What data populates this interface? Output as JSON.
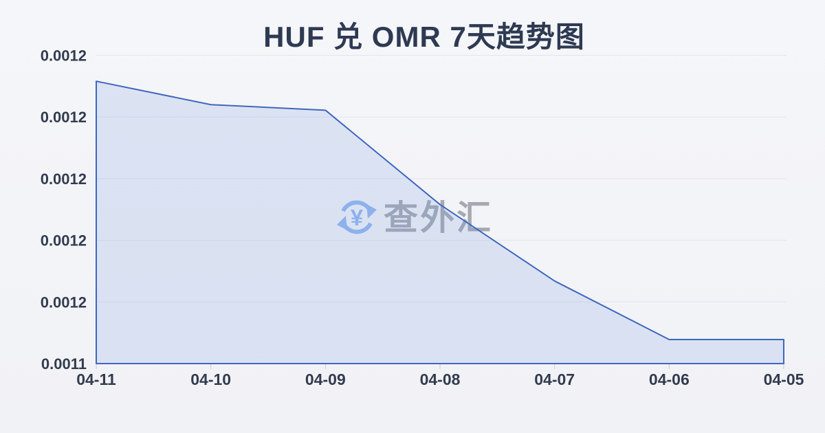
{
  "chart_data": {
    "type": "area",
    "title": "HUF 兑 OMR 7天趋势图",
    "categories": [
      "04-11",
      "04-10",
      "04-09",
      "04-08",
      "04-07",
      "04-06",
      "04-05"
    ],
    "series": [
      {
        "name": "HUF 兑 OMR",
        "values": [
          0.0011908,
          0.001187,
          0.0011861,
          0.0011708,
          0.0011584,
          0.0011489,
          0.0011489
        ]
      }
    ],
    "xlabel": "",
    "ylabel": "",
    "y_axis": {
      "min": 0.001145,
      "max": 0.001195,
      "ticks": [
        0.001195,
        0.001185,
        0.001175,
        0.001165,
        0.001155,
        0.001145
      ],
      "tick_labels": [
        "0.0012",
        "0.0012",
        "0.0012",
        "0.0012",
        "0.0012",
        "0.0011"
      ]
    },
    "grid": true,
    "legend_position": "none",
    "colors": {
      "line": "#4066bf",
      "fill": "rgba(120,154,226,0.20)",
      "grid": "#e3e5eb",
      "tick": "#c6cad4",
      "label": "#333b4f",
      "title": "#2e3a52"
    }
  },
  "watermark": {
    "icon": "currency-exchange-icon",
    "text": "查外汇",
    "icon_color": "#93b7ef"
  }
}
